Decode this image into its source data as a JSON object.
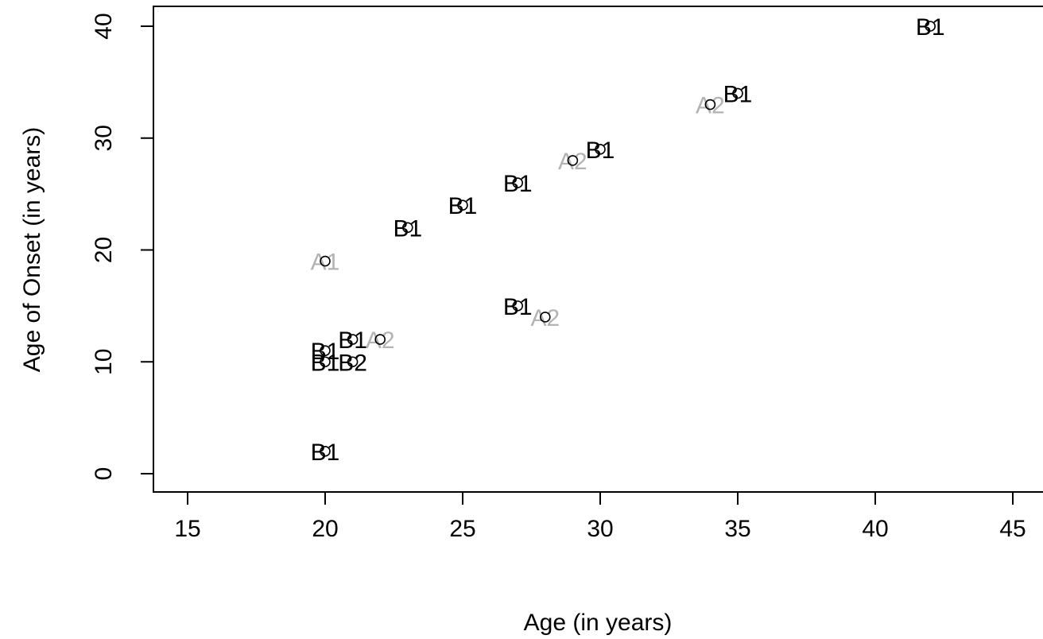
{
  "chart_data": {
    "type": "scatter",
    "xlabel": "Age (in years)",
    "ylabel": "Age of Onset (in years)",
    "xlim": [
      15,
      45
    ],
    "ylim": [
      0,
      40
    ],
    "xticks": [
      "15",
      "20",
      "25",
      "30",
      "35",
      "40",
      "45"
    ],
    "yticks": [
      "0",
      "10",
      "20",
      "30",
      "40"
    ],
    "grid": false,
    "marker": "open-circle",
    "colors": {
      "A": "#b3b3b3",
      "B": "#000000"
    },
    "points": [
      {
        "x": 42,
        "y": 40,
        "label": "B1",
        "group": "B"
      },
      {
        "x": 35,
        "y": 34,
        "label": "B1",
        "group": "B"
      },
      {
        "x": 34,
        "y": 33,
        "label": "A2",
        "group": "A"
      },
      {
        "x": 30,
        "y": 29,
        "label": "B1",
        "group": "B"
      },
      {
        "x": 29,
        "y": 28,
        "label": "A2",
        "group": "A"
      },
      {
        "x": 27,
        "y": 26,
        "label": "B1",
        "group": "B"
      },
      {
        "x": 25,
        "y": 24,
        "label": "B1",
        "group": "B"
      },
      {
        "x": 23,
        "y": 22,
        "label": "B1",
        "group": "B"
      },
      {
        "x": 20,
        "y": 19,
        "label": "A1",
        "group": "A"
      },
      {
        "x": 27,
        "y": 15,
        "label": "B1",
        "group": "B"
      },
      {
        "x": 28,
        "y": 14,
        "label": "A2",
        "group": "A"
      },
      {
        "x": 22,
        "y": 12,
        "label": "A2",
        "group": "A"
      },
      {
        "x": 21,
        "y": 12,
        "label": "B1",
        "group": "B"
      },
      {
        "x": 20,
        "y": 11,
        "label": "B1",
        "group": "B"
      },
      {
        "x": 20,
        "y": 10,
        "label": "B1",
        "group": "B"
      },
      {
        "x": 21,
        "y": 10,
        "label": "B2",
        "group": "B"
      },
      {
        "x": 20,
        "y": 2,
        "label": "B1",
        "group": "B"
      }
    ]
  }
}
